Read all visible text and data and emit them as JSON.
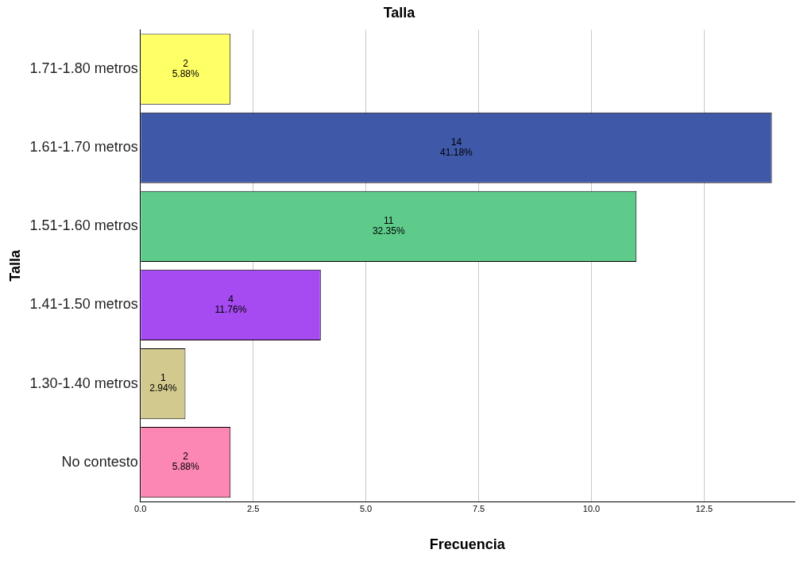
{
  "chart_data": {
    "type": "bar",
    "orientation": "horizontal",
    "title": "Talla",
    "xlabel": "Frecuencia",
    "ylabel": "Talla",
    "categories": [
      "1.71-1.80 metros",
      "1.61-1.70 metros",
      "1.51-1.60 metros",
      "1.41-1.50 metros",
      "1.30-1.40 metros",
      "No contesto"
    ],
    "values": [
      2,
      14,
      11,
      4,
      1,
      2
    ],
    "colors": [
      "#ffff66",
      "#3f58a8",
      "#5ecb8b",
      "#a64bf1",
      "#d2c98f",
      "#fc86b4"
    ],
    "value_labels": [
      "2\n5.88%",
      "14\n41.18%",
      "11\n32.35%",
      "4\n11.76%",
      "1\n2.94%",
      "2\n5.88%"
    ],
    "xlim": [
      0,
      14.5
    ],
    "xticks": [
      {
        "value": 0,
        "label": "0.0"
      },
      {
        "value": 2.5,
        "label": "2.5"
      },
      {
        "value": 5,
        "label": "5.0"
      },
      {
        "value": 7.5,
        "label": "7.5"
      },
      {
        "value": 10,
        "label": "10.0"
      },
      {
        "value": 12.5,
        "label": "12.5"
      }
    ],
    "grid": "x",
    "legend": false
  }
}
